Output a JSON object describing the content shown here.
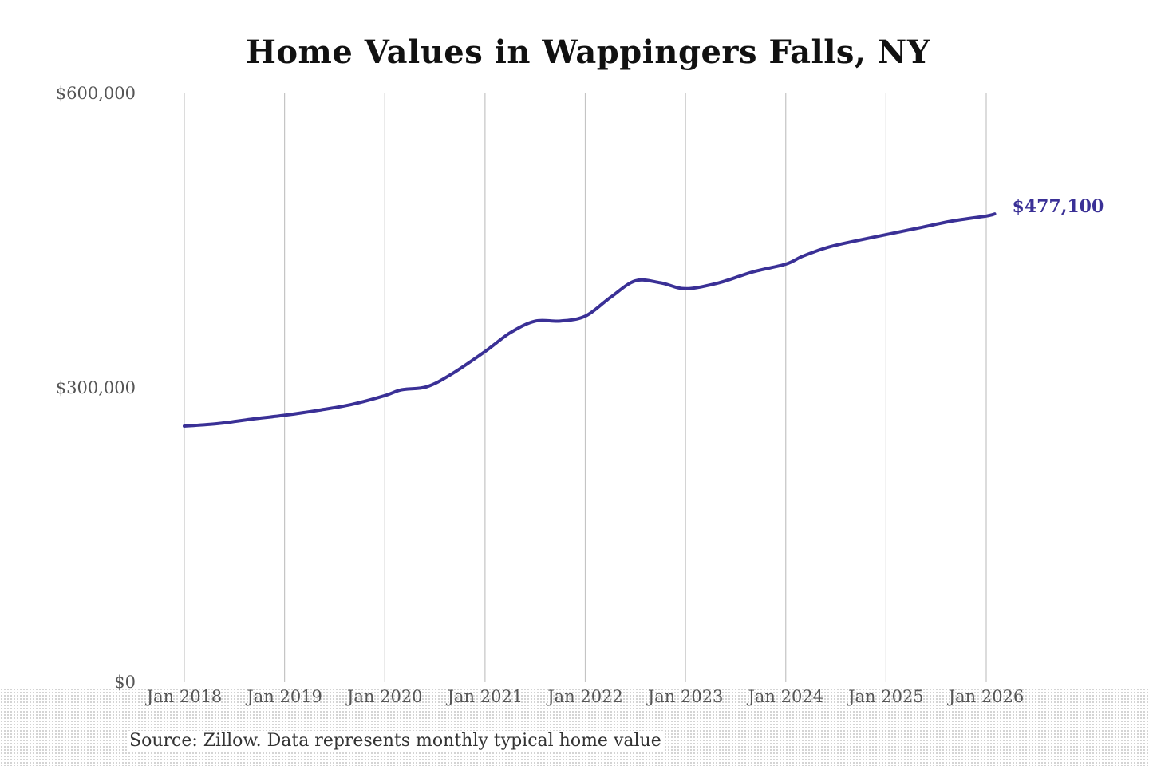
{
  "colors": {
    "line": "#3a3096",
    "grid": "#c4c4c4",
    "title": "#111111",
    "tick": "#555555"
  },
  "chart_data": {
    "type": "line",
    "title": "Home Values in Wappingers Falls, NY",
    "xlabel": "",
    "ylabel": "",
    "ylim": [
      0,
      600000
    ],
    "y_ticks": [
      {
        "value": 0,
        "label": "$0"
      },
      {
        "value": 300000,
        "label": "$300,000"
      },
      {
        "value": 600000,
        "label": "$600,000"
      }
    ],
    "x_ticks": [
      {
        "date": "2018-01",
        "label": "Jan 2018"
      },
      {
        "date": "2019-01",
        "label": "Jan 2019"
      },
      {
        "date": "2020-01",
        "label": "Jan 2020"
      },
      {
        "date": "2021-01",
        "label": "Jan 2021"
      },
      {
        "date": "2022-01",
        "label": "Jan 2022"
      },
      {
        "date": "2023-01",
        "label": "Jan 2023"
      },
      {
        "date": "2024-01",
        "label": "Jan 2024"
      },
      {
        "date": "2025-01",
        "label": "Jan 2025"
      },
      {
        "date": "2026-01",
        "label": "Jan 2026"
      }
    ],
    "xlim": [
      "2018-01",
      "2026-01"
    ],
    "grid": "vertical",
    "series": [
      {
        "points": [
          [
            "2018-01",
            261000
          ],
          [
            "2018-05",
            263500
          ],
          [
            "2018-09",
            268000
          ],
          [
            "2019-01",
            272000
          ],
          [
            "2019-05",
            277000
          ],
          [
            "2019-09",
            283000
          ],
          [
            "2020-01",
            292000
          ],
          [
            "2020-03",
            298000
          ],
          [
            "2020-06",
            301000
          ],
          [
            "2020-09",
            314000
          ],
          [
            "2021-01",
            337000
          ],
          [
            "2021-04",
            356000
          ],
          [
            "2021-07",
            368000
          ],
          [
            "2021-10",
            368000
          ],
          [
            "2022-01",
            373000
          ],
          [
            "2022-04",
            392000
          ],
          [
            "2022-07",
            409000
          ],
          [
            "2022-10",
            407000
          ],
          [
            "2023-01",
            401000
          ],
          [
            "2023-05",
            407000
          ],
          [
            "2023-09",
            418000
          ],
          [
            "2024-01",
            426000
          ],
          [
            "2024-03",
            434000
          ],
          [
            "2024-06",
            443000
          ],
          [
            "2024-09",
            449000
          ],
          [
            "2025-01",
            456000
          ],
          [
            "2025-05",
            463000
          ],
          [
            "2025-09",
            470000
          ],
          [
            "2026-01",
            475000
          ],
          [
            "2026-02",
            477100
          ]
        ]
      }
    ],
    "end_label": "$477,100"
  },
  "source": "Source: Zillow. Data represents monthly typical home value"
}
